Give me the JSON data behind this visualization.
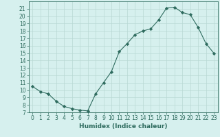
{
  "x": [
    0,
    1,
    2,
    3,
    4,
    5,
    6,
    7,
    8,
    9,
    10,
    11,
    12,
    13,
    14,
    15,
    16,
    17,
    18,
    19,
    20,
    21,
    22,
    23
  ],
  "y": [
    10.5,
    9.8,
    9.5,
    8.5,
    7.8,
    7.5,
    7.3,
    7.2,
    9.5,
    11.0,
    12.5,
    15.2,
    16.3,
    17.5,
    18.0,
    18.3,
    19.5,
    21.1,
    21.2,
    20.5,
    20.2,
    18.5,
    16.3,
    15.0
  ],
  "line_color": "#2e6b5e",
  "marker": "D",
  "marker_size": 2.2,
  "bg_color": "#d6f0ee",
  "grid_color": "#b8d8d4",
  "xlabel": "Humidex (Indice chaleur)",
  "ylim": [
    7,
    22
  ],
  "xlim": [
    -0.5,
    23.5
  ],
  "yticks": [
    7,
    8,
    9,
    10,
    11,
    12,
    13,
    14,
    15,
    16,
    17,
    18,
    19,
    20,
    21
  ],
  "xticks": [
    0,
    1,
    2,
    3,
    4,
    5,
    6,
    7,
    8,
    9,
    10,
    11,
    12,
    13,
    14,
    15,
    16,
    17,
    18,
    19,
    20,
    21,
    22,
    23
  ],
  "tick_color": "#2e6b5e",
  "label_color": "#2e6b5e",
  "tick_labelsize": 5.5,
  "xlabel_fontsize": 6.5,
  "linewidth": 0.8
}
